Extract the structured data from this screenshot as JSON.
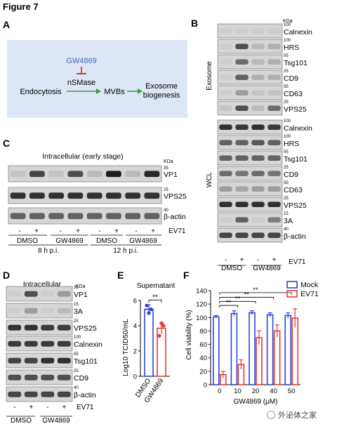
{
  "figure_title": "Figure 7",
  "panel_labels": {
    "A": "A",
    "B": "B",
    "C": "C",
    "D": "D",
    "E": "E",
    "F": "F"
  },
  "panelA": {
    "inhibitor": "GW4869",
    "enzyme": "nSMase",
    "left": "Endocytosis",
    "middle": "MVBs",
    "right_line1": "Exosome",
    "right_line2": "biogenesis",
    "colors": {
      "box": "#dde6f4",
      "inhibitor": "#3b66b5",
      "inhibit_bar": "#e02020",
      "arrow": "#3aa23a"
    }
  },
  "panelB": {
    "kda": "KDa",
    "exosome_label": "Exosome",
    "wcl_label": "WCL",
    "exosome_bands": [
      {
        "name": "Calnexin",
        "marker": "100"
      },
      {
        "name": "HRS",
        "marker": "100"
      },
      {
        "name": "Tsg101",
        "marker": "55"
      },
      {
        "name": "CD9",
        "marker": "25"
      },
      {
        "name": "CD63",
        "marker": "55"
      },
      {
        "name": "VPS25",
        "marker": "25"
      }
    ],
    "wcl_bands": [
      {
        "name": "Calnexin",
        "marker": "100"
      },
      {
        "name": "HRS",
        "marker": "100"
      },
      {
        "name": "Tsg101",
        "marker": "55"
      },
      {
        "name": "CD9",
        "marker": "25"
      },
      {
        "name": "CD63",
        "marker": "55"
      },
      {
        "name": "VPS25",
        "marker": "25"
      },
      {
        "name": "3A",
        "marker": "15"
      },
      {
        "name": "β-actin",
        "marker": "40"
      }
    ],
    "signs": [
      "-",
      "+",
      "-",
      "+"
    ],
    "ev71": "EV71",
    "groups": [
      "DMSO",
      "GW4869"
    ]
  },
  "panelC": {
    "title": "Intracellular (early stage)",
    "kda": "KDa",
    "bands": [
      {
        "name": "VP1",
        "marker": "35"
      },
      {
        "name": "VPS25",
        "marker": "25"
      },
      {
        "name": "β-actin",
        "marker": "40"
      }
    ],
    "signs": [
      "-",
      "+",
      "-",
      "+",
      "-",
      "+",
      "-",
      "+"
    ],
    "ev71": "EV71",
    "groups": [
      "DMSO",
      "GW4869",
      "DMSO",
      "GW4869"
    ],
    "times": [
      "8 h p.i.",
      "12 h p.i."
    ]
  },
  "panelD": {
    "title": "Intracellular",
    "kda": "KDa",
    "bands": [
      {
        "name": "VP1",
        "marker": "35"
      },
      {
        "name": "3A",
        "marker": "15"
      },
      {
        "name": "VPS25",
        "marker": "25"
      },
      {
        "name": "Calnexin",
        "marker": "100"
      },
      {
        "name": "Tsg101",
        "marker": "55"
      },
      {
        "name": "CD9",
        "marker": "25"
      },
      {
        "name": "β-actin",
        "marker": "40"
      }
    ],
    "signs": [
      "-",
      "+",
      "-",
      "+"
    ],
    "ev71": "EV71",
    "groups": [
      "DMSO",
      "GW4869"
    ]
  },
  "chart_data": [
    {
      "type": "bar",
      "title": "Supernatant",
      "ylabel": "Log10 TCID50/mL",
      "categories": [
        "DMSO",
        "GW4869"
      ],
      "values": [
        5.3,
        3.8
      ],
      "errors": [
        0.35,
        0.45
      ],
      "points": [
        [
          5.6,
          5.0,
          5.3
        ],
        [
          3.2,
          4.2,
          4.0
        ]
      ],
      "ylim": [
        0,
        6
      ],
      "yticks": [
        0,
        2,
        4,
        6
      ],
      "significance": "**",
      "colors": [
        "#2b45d8",
        "#e53935"
      ]
    },
    {
      "type": "bar",
      "title": "",
      "ylabel": "Cell viability (%)",
      "xlabel": "GW4869 (μM)",
      "categories": [
        "0",
        "10",
        "20",
        "40",
        "50"
      ],
      "ylim": [
        0,
        140
      ],
      "yticks": [
        0,
        20,
        40,
        60,
        80,
        100,
        120,
        140
      ],
      "legend_position": "top-right",
      "series": [
        {
          "name": "Mock",
          "values": [
            101,
            106,
            107,
            104,
            103
          ],
          "errors": [
            2,
            4,
            3,
            3,
            4
          ],
          "color": "#2b45d8"
        },
        {
          "name": "EV71",
          "values": [
            15,
            30,
            70,
            80,
            99
          ],
          "errors": [
            5,
            7,
            10,
            9,
            14
          ],
          "color": "#e53935"
        }
      ],
      "significance": [
        "**",
        "**",
        "**",
        "**"
      ]
    }
  ],
  "watermark": "外泌体之家"
}
